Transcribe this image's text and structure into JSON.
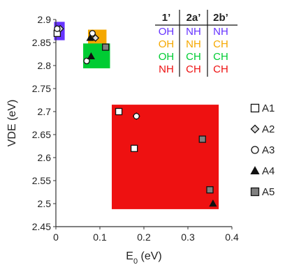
{
  "chart_data": {
    "type": "scatter",
    "xlabel": "E0 (eV)",
    "xlabel_main": "E",
    "xlabel_sub": "0",
    "xlabel_unit": " (eV)",
    "ylabel": "VDE (eV)",
    "xlim": [
      0,
      0.4
    ],
    "ylim": [
      2.45,
      2.9
    ],
    "x_ticks": [
      0,
      0.1,
      0.2,
      0.3,
      0.4
    ],
    "x_tick_labels": [
      "0",
      "0.1",
      "0.2",
      "0.3",
      "0.4"
    ],
    "y_ticks": [
      2.45,
      2.5,
      2.55,
      2.6,
      2.65,
      2.7,
      2.75,
      2.8,
      2.85,
      2.9
    ],
    "y_tick_labels": [
      "2.45",
      "2.5",
      "2.55",
      "2.6",
      "2.65",
      "2.7",
      "2.75",
      "2.8",
      "2.85",
      "2.9"
    ],
    "grid": false,
    "legend_position": "right",
    "regions": [
      {
        "color": "#6633ff",
        "x": [
          -0.004,
          0.02
        ],
        "y": [
          2.855,
          2.895
        ]
      },
      {
        "color": "#f5a800",
        "x": [
          0.073,
          0.115
        ],
        "y": [
          2.845,
          2.878
        ]
      },
      {
        "color": "#00cc33",
        "x": [
          0.062,
          0.123
        ],
        "y": [
          2.794,
          2.848
        ]
      },
      {
        "color": "#ee1111",
        "x": [
          0.127,
          0.37
        ],
        "y": [
          2.488,
          2.715
        ]
      }
    ],
    "series": [
      {
        "name": "A1",
        "marker": "square",
        "fill": "#ffffff",
        "points": [
          [
            0.003,
            2.87
          ],
          [
            0.143,
            2.7
          ],
          [
            0.178,
            2.62
          ]
        ]
      },
      {
        "name": "A2",
        "marker": "diamond",
        "fill": "#dddddd",
        "points": [
          [
            0.01,
            2.88
          ],
          [
            0.09,
            2.86
          ],
          [
            0.183,
            2.69
          ]
        ]
      },
      {
        "name": "A3",
        "marker": "circle",
        "fill": "#ffffff",
        "points": [
          [
            0.003,
            2.88
          ],
          [
            0.083,
            2.87
          ],
          [
            0.07,
            2.81
          ],
          [
            0.183,
            2.69
          ]
        ]
      },
      {
        "name": "A4",
        "marker": "triangle",
        "fill": "#111111",
        "points": [
          [
            0.078,
            2.86
          ],
          [
            0.08,
            2.82
          ],
          [
            0.357,
            2.5
          ]
        ]
      },
      {
        "name": "A5",
        "marker": "square",
        "fill": "#808080",
        "points": [
          [
            0.113,
            2.84
          ],
          [
            0.333,
            2.64
          ],
          [
            0.35,
            2.53
          ]
        ]
      }
    ]
  },
  "table": {
    "headers": [
      "1’",
      "2a’",
      "2b’"
    ],
    "rows": [
      {
        "color": "#6633ff",
        "cells": [
          "OH",
          "NH",
          "NH"
        ]
      },
      {
        "color": "#f5a800",
        "cells": [
          "OH",
          "NH",
          "CH"
        ]
      },
      {
        "color": "#00cc33",
        "cells": [
          "OH",
          "CH",
          "CH"
        ]
      },
      {
        "color": "#ee1111",
        "cells": [
          "NH",
          "CH",
          "CH"
        ]
      }
    ]
  }
}
